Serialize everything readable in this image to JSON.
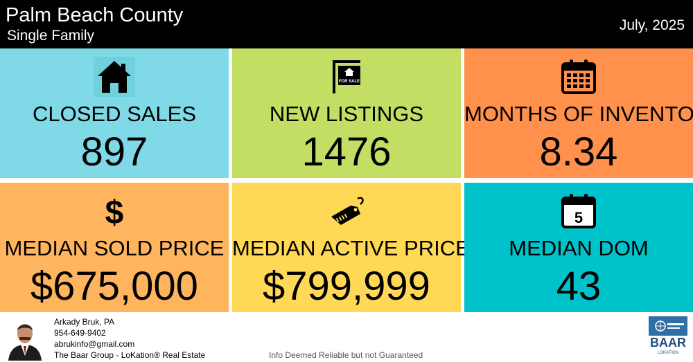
{
  "header": {
    "title": "Palm Beach County",
    "subtitle": "Single Family",
    "date": "July, 2025"
  },
  "tiles": [
    {
      "label": "CLOSED SALES",
      "value": "897",
      "color": "#7fd9e6",
      "icon": "house-icon"
    },
    {
      "label": "NEW LISTINGS",
      "value": "1476",
      "color": "#c2df64",
      "icon": "for-sale-sign-icon",
      "icon_text": "FOR SALE"
    },
    {
      "label": "MONTHS OF INVENTORY",
      "value": "8.34",
      "color": "#ff914d",
      "icon": "calendar-grid-icon"
    },
    {
      "label": "MEDIAN SOLD PRICE",
      "value": "$675,000",
      "color": "#ffb55e",
      "icon": "dollar-icon",
      "icon_text": "$"
    },
    {
      "label": "MEDIAN ACTIVE PRICE",
      "value": "$799,999",
      "color": "#ffd955",
      "icon": "price-tag-icon"
    },
    {
      "label": "MEDIAN DOM",
      "value": "43",
      "color": "#00c2cb",
      "icon": "calendar-day-icon",
      "icon_text": "5"
    }
  ],
  "footer": {
    "agent_name": "Arkady Bruk, PA",
    "phone": "954-649-9402",
    "email": "abrukinfo@gmail.com",
    "company": "The Baar Group - LoKation® Real Estate",
    "disclaimer": "Info Deemed Reliable but not Guaranteed",
    "logo_text": "BAAR",
    "logo_subtext": "LOKATION"
  }
}
